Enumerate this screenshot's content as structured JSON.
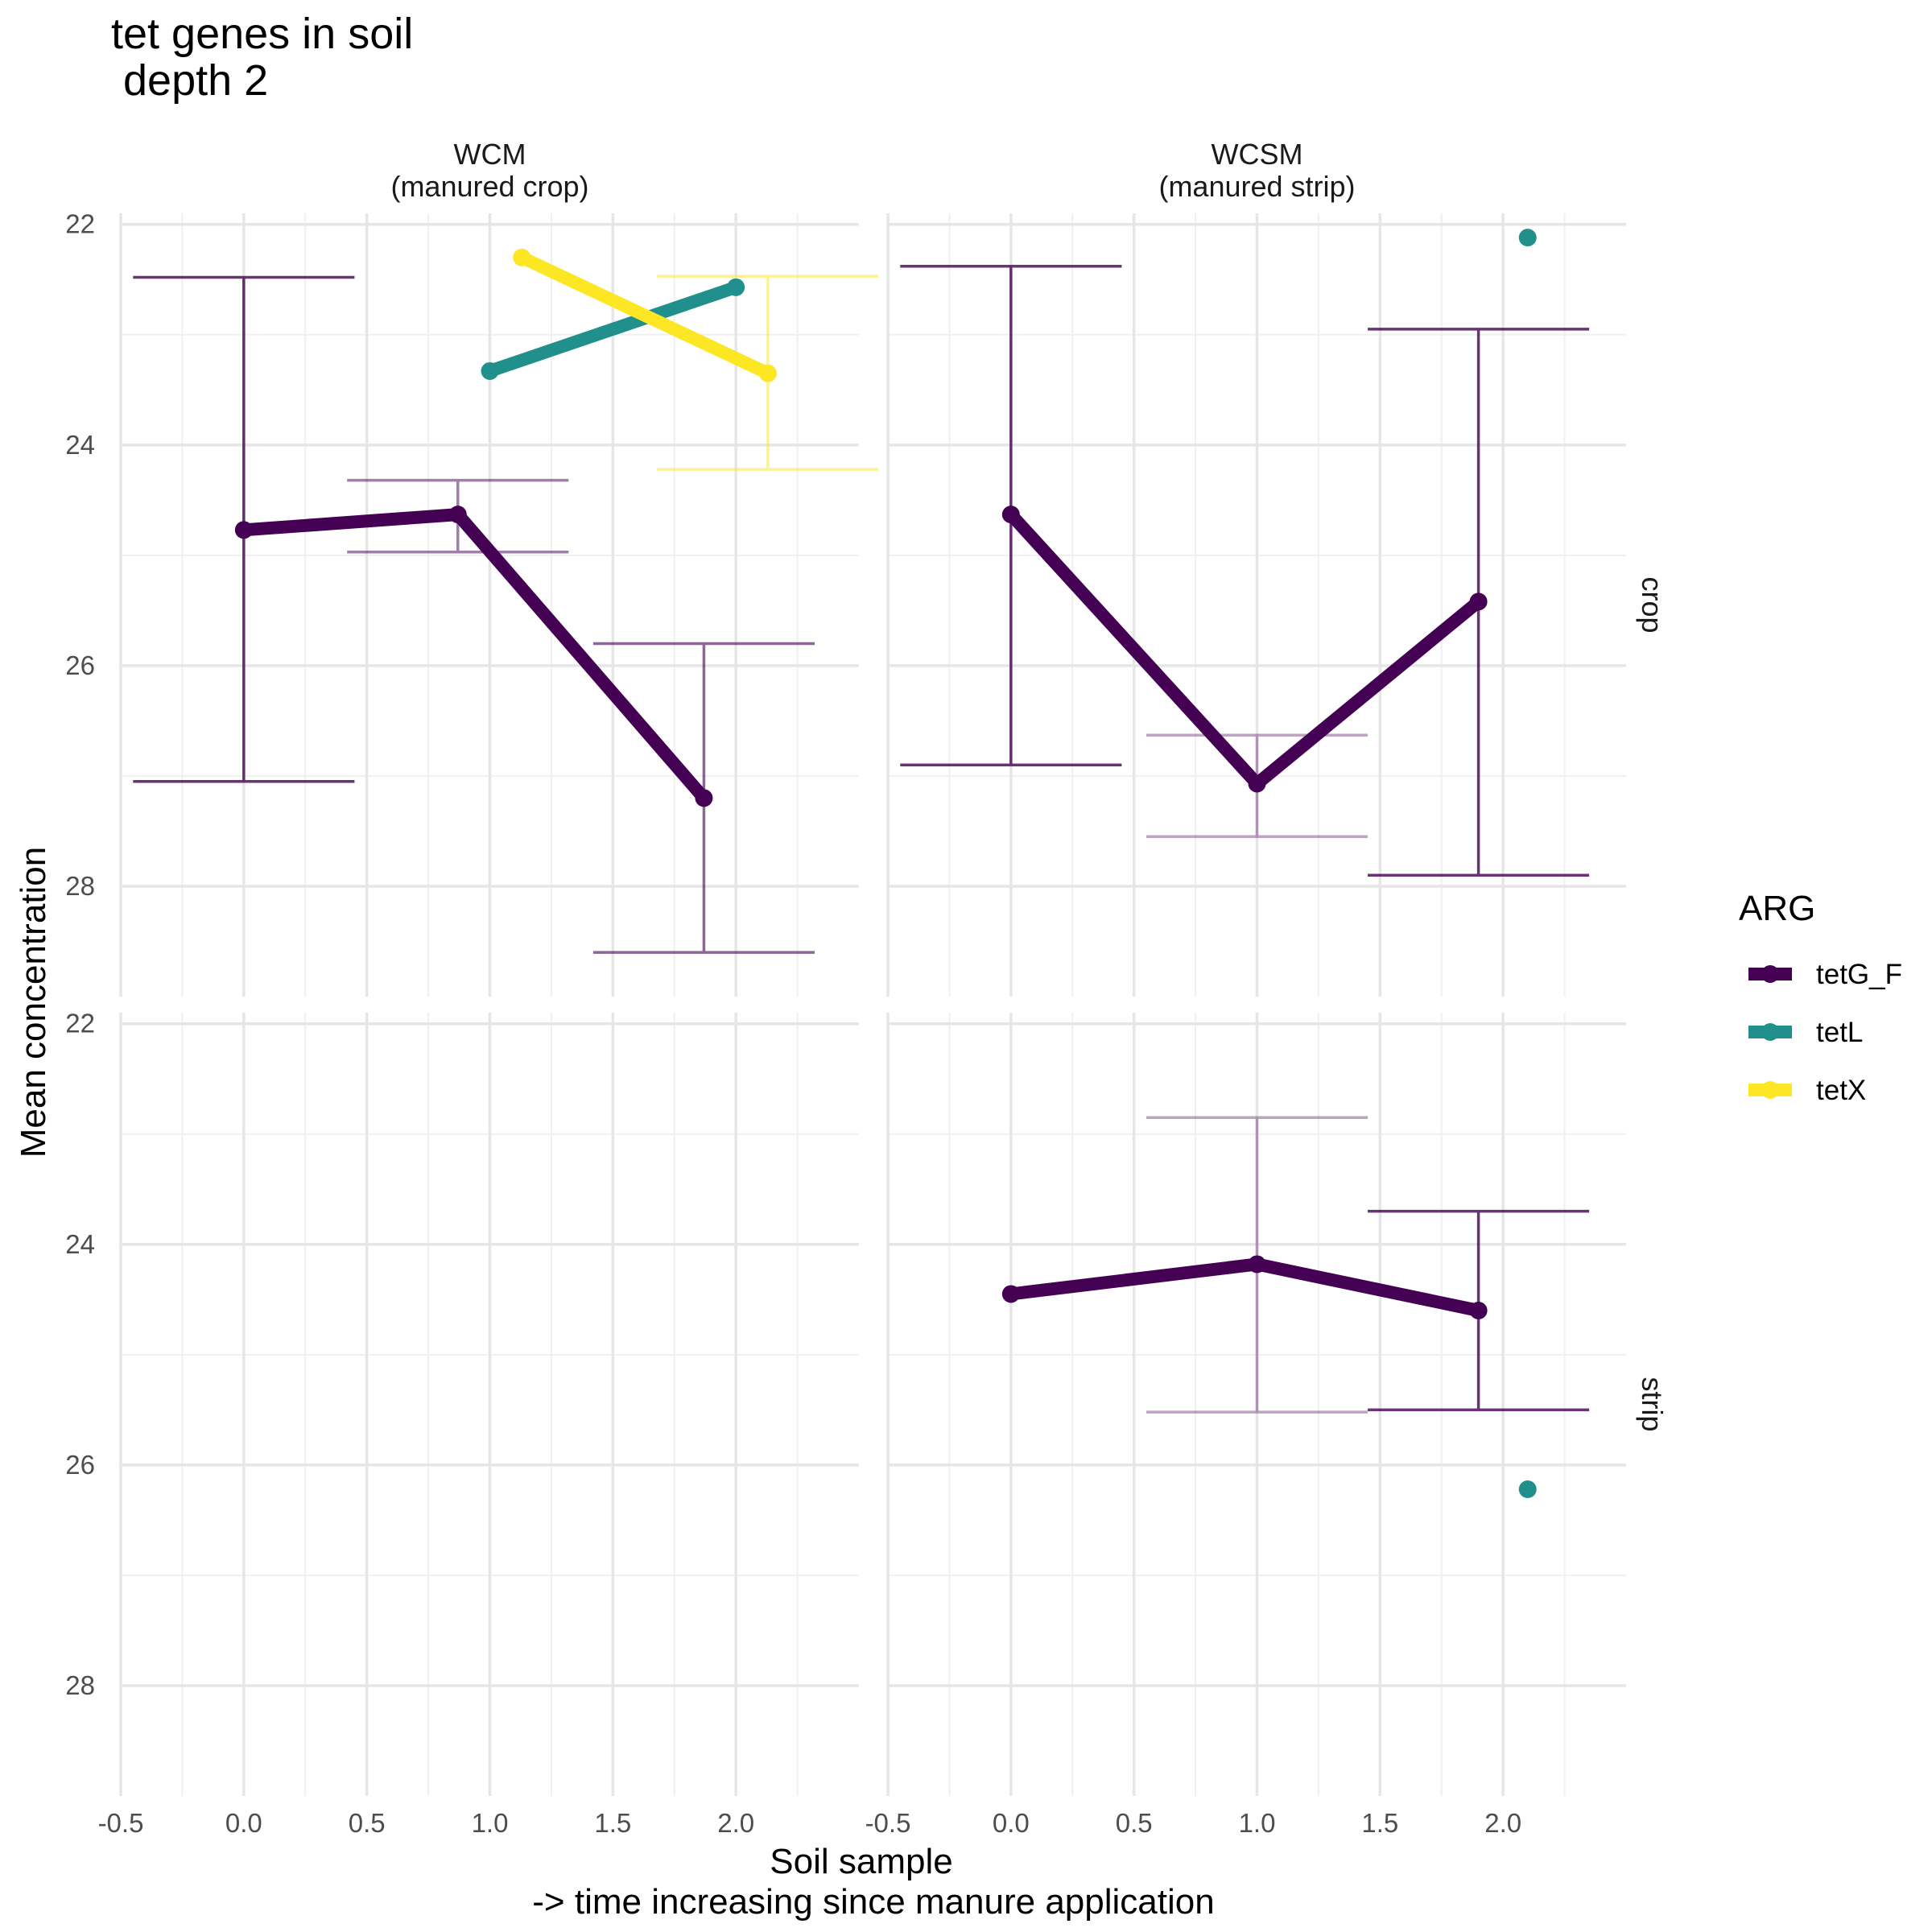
{
  "title_lines": [
    "tet genes in soil",
    " depth 2"
  ],
  "axes": {
    "xlabel_lines": [
      "Soil sample",
      "-> time increasing since manure application"
    ],
    "ylabel": "Mean concentration"
  },
  "legend": {
    "title": "ARG",
    "items": [
      "tetG_F",
      "tetL",
      "tetX"
    ]
  },
  "chart_data": {
    "type": "line",
    "y_reversed": true,
    "xlim": [
      -0.5,
      2.5
    ],
    "ylim": [
      21.9,
      29.0
    ],
    "x_ticks": [
      "-0.5",
      "0.0",
      "0.5",
      "1.0",
      "1.5",
      "2.0"
    ],
    "y_ticks": [
      "22",
      "24",
      "26",
      "28"
    ],
    "grid": true,
    "legend_position": "right",
    "facet_cols": [
      "WCM\n(manured crop)",
      "WCSM\n(manured strip)"
    ],
    "facet_rows": [
      "crop",
      "strip"
    ],
    "series_colors": {
      "tetG_F": "#440154",
      "tetL": "#21908C",
      "tetX": "#FDE725"
    },
    "panels": [
      {
        "col": 0,
        "row": 0,
        "series": [
          {
            "name": "tetG_F",
            "points": [
              [
                0.0,
                24.77
              ],
              [
                0.87,
                24.63
              ],
              [
                1.87,
                27.2
              ]
            ]
          },
          {
            "name": "tetL",
            "points": [
              [
                1.0,
                23.33
              ],
              [
                2.0,
                22.57
              ]
            ]
          },
          {
            "name": "tetX",
            "points": [
              [
                1.13,
                22.3
              ],
              [
                2.13,
                23.35
              ]
            ]
          }
        ],
        "errorbars": [
          {
            "name": "tetG_F",
            "x": 0.0,
            "low": 22.48,
            "high": 27.05,
            "opacity": 0.8
          },
          {
            "name": "tetG_F",
            "x": 0.87,
            "low": 24.32,
            "high": 24.97,
            "opacity": 0.5
          },
          {
            "name": "tetG_F",
            "x": 1.87,
            "low": 25.8,
            "high": 28.6,
            "opacity": 0.6
          },
          {
            "name": "tetX",
            "x": 2.13,
            "low": 22.47,
            "high": 24.22,
            "opacity": 0.5
          }
        ]
      },
      {
        "col": 1,
        "row": 0,
        "series": [
          {
            "name": "tetG_F",
            "points": [
              [
                0.0,
                24.63
              ],
              [
                1.0,
                27.07
              ],
              [
                1.9,
                25.42
              ]
            ]
          },
          {
            "name": "tetL",
            "points": [
              [
                2.1,
                22.12
              ]
            ]
          }
        ],
        "errorbars": [
          {
            "name": "tetG_F",
            "x": 0.0,
            "low": 22.38,
            "high": 26.9,
            "opacity": 0.8
          },
          {
            "name": "tetG_F",
            "x": 1.0,
            "low": 26.63,
            "high": 27.55,
            "opacity": 0.35
          },
          {
            "name": "tetG_F",
            "x": 1.9,
            "low": 22.95,
            "high": 27.9,
            "opacity": 0.8
          }
        ]
      },
      {
        "col": 0,
        "row": 1,
        "series": [],
        "errorbars": []
      },
      {
        "col": 1,
        "row": 1,
        "series": [
          {
            "name": "tetG_F",
            "points": [
              [
                0.0,
                24.45
              ],
              [
                1.0,
                24.18
              ],
              [
                1.9,
                24.6
              ]
            ]
          },
          {
            "name": "tetL",
            "points": [
              [
                2.1,
                26.22
              ]
            ]
          }
        ],
        "errorbars": [
          {
            "name": "tetG_F",
            "x": 1.0,
            "low": 22.85,
            "high": 25.52,
            "opacity": 0.35
          },
          {
            "name": "tetG_F",
            "x": 1.9,
            "low": 23.7,
            "high": 25.5,
            "opacity": 0.8
          }
        ]
      }
    ]
  }
}
